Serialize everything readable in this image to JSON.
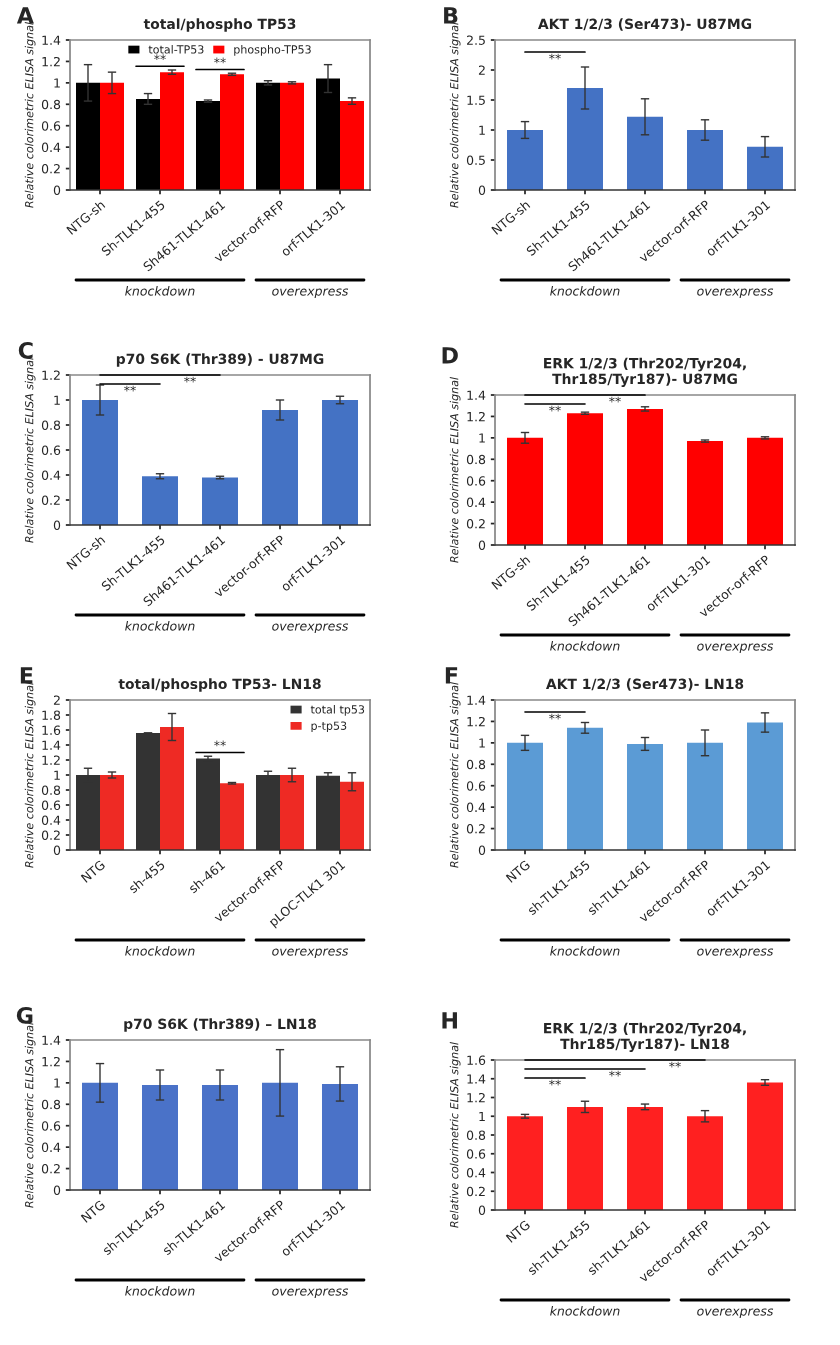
{
  "chart_data": [
    {
      "type": "bar",
      "title": "total/phospho TP53",
      "ylabel": "Relative colorimetric ELISA signal",
      "categories": [
        "NTG-sh",
        "Sh-TLK1-455",
        "Sh461-TLK1-461",
        "vector-orf-RFP",
        "orf-TLK1-301"
      ],
      "series": [
        {
          "name": "total-TP53",
          "color": "#000000",
          "values": [
            1.0,
            0.85,
            0.83,
            1.0,
            1.04
          ],
          "errors": [
            0.17,
            0.05,
            0.01,
            0.02,
            0.13
          ]
        },
        {
          "name": "phospho-TP53",
          "color": "#ff0000",
          "values": [
            1.0,
            1.1,
            1.08,
            1.0,
            0.83
          ],
          "errors": [
            0.1,
            0.02,
            0.01,
            0.01,
            0.03
          ]
        }
      ],
      "ylim": [
        0,
        1.4
      ],
      "yticks": [
        0,
        0.2,
        0.4,
        0.6,
        0.8,
        1,
        1.2,
        1.4
      ],
      "legend": "top",
      "annotations": [
        "A",
        "**",
        "**",
        "knockdown",
        "overexpress"
      ]
    },
    {
      "type": "bar",
      "title": "AKT 1/2/3 (Ser473)- U87MG",
      "ylabel": "Relative colorimetric ELISA signal",
      "categories": [
        "NTG-sh",
        "Sh-TLK1-455",
        "Sh461-TLK1-461",
        "vector-orf-RFP",
        "orf-TLK1-301"
      ],
      "series": [
        {
          "color": "#4472c4",
          "values": [
            1.0,
            1.7,
            1.22,
            1.0,
            0.72
          ],
          "errors": [
            0.14,
            0.35,
            0.3,
            0.17,
            0.17
          ]
        }
      ],
      "ylim": [
        0,
        2.5
      ],
      "yticks": [
        0,
        0.5,
        1,
        1.5,
        2,
        2.5
      ],
      "annotations": [
        "B",
        "**",
        "knockdown",
        "overexpress"
      ]
    },
    {
      "type": "bar",
      "title": "p70 S6K (Thr389) - U87MG",
      "ylabel": "Relative colorimetric ELISA signal",
      "categories": [
        "NTG-sh",
        "Sh-TLK1-455",
        "Sh461-TLK1-461",
        "vector-orf-RFP",
        "orf-TLK1-301"
      ],
      "series": [
        {
          "color": "#4472c4",
          "values": [
            1.0,
            0.39,
            0.38,
            0.92,
            1.0
          ],
          "errors": [
            0.12,
            0.02,
            0.01,
            0.08,
            0.03
          ]
        }
      ],
      "ylim": [
        0,
        1.2
      ],
      "yticks": [
        0,
        0.2,
        0.4,
        0.6,
        0.8,
        1,
        1.2
      ],
      "annotations": [
        "C",
        "**",
        "**",
        "knockdown",
        "overexpress"
      ]
    },
    {
      "type": "bar",
      "title": "ERK 1/2/3 (Thr202/Tyr204,\nThr185/Tyr187)- U87MG",
      "ylabel": "Relative colorimetric ELISA signal",
      "categories": [
        "NTG-sh",
        "Sh-TLK1-455",
        "Sh461-TLK1-461",
        "orf-TLK1-301",
        "vector-orf-RFP"
      ],
      "series": [
        {
          "color": "#ff0000",
          "values": [
            1.0,
            1.23,
            1.27,
            0.97,
            1.0
          ],
          "errors": [
            0.05,
            0.01,
            0.02,
            0.01,
            0.01
          ]
        }
      ],
      "ylim": [
        0,
        1.4
      ],
      "yticks": [
        0,
        0.2,
        0.4,
        0.6,
        0.8,
        1,
        1.2,
        1.4
      ],
      "annotations": [
        "D",
        "**",
        "**",
        "knockdown",
        "overexpress"
      ]
    },
    {
      "type": "bar",
      "title": "total/phospho TP53- LN18",
      "ylabel": "Relative colorimetric ELISA signal",
      "categories": [
        "NTG",
        "sh-455",
        "sh-461",
        "vector-orf-RFP",
        "pLOC-TLK1 301"
      ],
      "series": [
        {
          "name": "total tp53",
          "color": "#333333",
          "values": [
            1.0,
            1.56,
            1.22,
            1.0,
            0.99
          ],
          "errors": [
            0.09,
            0.0,
            0.03,
            0.05,
            0.04
          ]
        },
        {
          "name": "p-tp53",
          "color": "#ee2a24",
          "values": [
            1.0,
            1.64,
            0.89,
            1.0,
            0.91
          ],
          "errors": [
            0.04,
            0.18,
            0.01,
            0.09,
            0.12
          ]
        }
      ],
      "ylim": [
        0,
        2
      ],
      "yticks": [
        0,
        0.2,
        0.4,
        0.6,
        0.8,
        1,
        1.2,
        1.4,
        1.6,
        1.8,
        2
      ],
      "legend": "top right",
      "annotations": [
        "E",
        "**",
        "knockdown",
        "overexpress"
      ]
    },
    {
      "type": "bar",
      "title": "AKT 1/2/3 (Ser473)- LN18",
      "ylabel": "Relative colorimetric ELISA signal",
      "categories": [
        "NTG",
        "sh-TLK1-455",
        "sh-TLK1-461",
        "vector-orf-RFP",
        "orf-TLK1-301"
      ],
      "series": [
        {
          "color": "#5b9bd5",
          "values": [
            1.0,
            1.14,
            0.99,
            1.0,
            1.19
          ],
          "errors": [
            0.07,
            0.05,
            0.06,
            0.12,
            0.09
          ]
        }
      ],
      "ylim": [
        0,
        1.4
      ],
      "yticks": [
        0,
        0.2,
        0.4,
        0.6,
        0.8,
        1,
        1.2,
        1.4
      ],
      "annotations": [
        "F",
        "**",
        "knockdown",
        "overexpress"
      ]
    },
    {
      "type": "bar",
      "title": "p70 S6K (Thr389) – LN18",
      "ylabel": "Relative colorimetric ELISA signal",
      "categories": [
        "NTG",
        "sh-TLK1-455",
        "sh-TLK1-461",
        "vector-orf-RFP",
        "orf-TLK1-301"
      ],
      "series": [
        {
          "color": "#4a72c8",
          "values": [
            1.0,
            0.98,
            0.98,
            1.0,
            0.99
          ],
          "errors": [
            0.18,
            0.14,
            0.14,
            0.31,
            0.16
          ]
        }
      ],
      "ylim": [
        0,
        1.4
      ],
      "yticks": [
        0,
        0.2,
        0.4,
        0.6,
        0.8,
        1,
        1.2,
        1.4
      ],
      "annotations": [
        "G",
        "knockdown",
        "overexpress"
      ]
    },
    {
      "type": "bar",
      "title": "ERK 1/2/3 (Thr202/Tyr204,\nThr185/Tyr187)- LN18",
      "ylabel": "Relative colorimetric ELISA signal",
      "categories": [
        "NTG",
        "sh-TLK1-455",
        "sh-TLK1-461",
        "vector-orf-RFP",
        "orf-TLK1-301"
      ],
      "series": [
        {
          "color": "#ff2020",
          "values": [
            1.0,
            1.1,
            1.1,
            1.0,
            1.36
          ],
          "errors": [
            0.02,
            0.06,
            0.03,
            0.06,
            0.03
          ]
        }
      ],
      "ylim": [
        0,
        1.6
      ],
      "yticks": [
        0,
        0.2,
        0.4,
        0.6,
        0.8,
        1,
        1.2,
        1.4,
        1.6
      ],
      "annotations": [
        "H",
        "**",
        "**",
        "**",
        "knockdown",
        "overexpress"
      ]
    }
  ]
}
